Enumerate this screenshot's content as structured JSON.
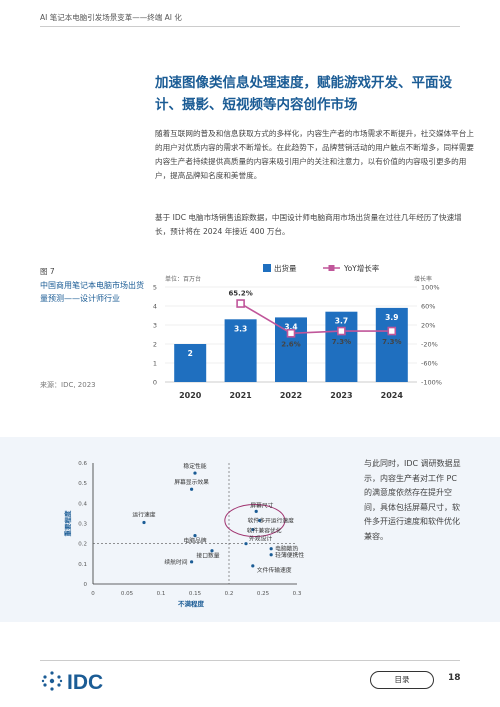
{
  "header": {
    "title": "AI 笔记本电脑引发场景变革——终端 AI 化"
  },
  "headline": "加速图像类信息处理速度，赋能游戏开发、平面设计、摄影、短视频等内容创作市场",
  "paragraphs": [
    "随着互联网的普及和信息获取方式的多样化，内容生产者的市场需求不断提升，社交媒体平台上的用户对优质内容的需求不断增长。在此趋势下，品牌营销活动的用户触点不断增多，同样需要内容生产者持续提供高质量的内容来吸引用户的关注和注意力，以有价值的内容吸引更多的用户，提高品牌知名度和美誉度。",
    "基于 IDC 电脑市场销售追踪数据，中国设计师电脑商用市场出货量在过往几年经历了快速增长，预计将在 2024 年接近 400 万台。"
  ],
  "figure": {
    "number": "图 7",
    "title": "中国商用笔记本电脑市场出货量预测——设计师行业",
    "source": "来源：IDC, 2023"
  },
  "side_text": "与此同时，IDC 调研数据显示，内容生产者对工作 PC 的满意度依然存在提升空间，具体包括屏幕尺寸，软件多开运行速度和软件优化兼容。",
  "footer": {
    "logo": "IDC",
    "toc_label": "目录",
    "page_number": "18"
  },
  "colors": {
    "brand": "#1b5c95",
    "bar": "#1f6fbf",
    "line": "#c0569a",
    "accent": "#a0336f"
  },
  "chart_data": [
    {
      "type": "bar",
      "categories": [
        "2020",
        "2021",
        "2022",
        "2023",
        "2024"
      ],
      "series": [
        {
          "name": "出货量",
          "values": [
            2.0,
            3.3,
            3.4,
            3.7,
            3.9
          ],
          "axis": "left"
        },
        {
          "name": "YoY增长率",
          "type": "line",
          "values": [
            null,
            65.2,
            2.6,
            7.3,
            7.3
          ],
          "labels": [
            "",
            "65.2%",
            "2.6%",
            "7.3%",
            "7.3%"
          ],
          "axis": "right"
        }
      ],
      "ylabel": "单位：百万台",
      "y2label": "增长率",
      "ylim": [
        0,
        5
      ],
      "y2lim": [
        -100,
        100
      ],
      "yticks": [
        "0",
        "1",
        "2",
        "3",
        "4",
        "5"
      ],
      "y2ticks": [
        "-100%",
        "-60%",
        "-20%",
        "20%",
        "60%",
        "100%"
      ],
      "legend": "top-center"
    },
    {
      "type": "scatter",
      "xlabel": "不满程度",
      "ylabel": "重要程度",
      "xlim": [
        0,
        0.3
      ],
      "ylim": [
        0,
        0.6
      ],
      "xticks": [
        "0",
        "0.05",
        "0.1",
        "0.15",
        "0.2",
        "0.25",
        "0.3"
      ],
      "yticks": [
        "0",
        "0.1",
        "0.2",
        "0.3",
        "0.4",
        "0.5",
        "0.6"
      ],
      "reference_lines": {
        "x": 0.2,
        "y": 0.2
      },
      "highlight": "屏幕尺寸, 软件多开运行速度, 软件兼容优化",
      "points": [
        {
          "label": "稳定性能",
          "x": 0.15,
          "y": 0.55
        },
        {
          "label": "屏幕显示效果",
          "x": 0.145,
          "y": 0.47
        },
        {
          "label": "运行速度",
          "x": 0.075,
          "y": 0.305
        },
        {
          "label": "电脑品牌",
          "x": 0.15,
          "y": 0.24
        },
        {
          "label": "屏幕尺寸",
          "x": 0.24,
          "y": 0.36
        },
        {
          "label": "软件多开运行速度",
          "x": 0.245,
          "y": 0.315
        },
        {
          "label": "软件兼容优化",
          "x": 0.235,
          "y": 0.27
        },
        {
          "label": "外观设计",
          "x": 0.225,
          "y": 0.2
        },
        {
          "label": "电脑散热",
          "x": 0.262,
          "y": 0.175
        },
        {
          "label": "接口数量",
          "x": 0.175,
          "y": 0.165
        },
        {
          "label": "轻薄便携性",
          "x": 0.262,
          "y": 0.145
        },
        {
          "label": "续航时间",
          "x": 0.145,
          "y": 0.11
        },
        {
          "label": "文件传输速度",
          "x": 0.235,
          "y": 0.09
        }
      ]
    }
  ]
}
